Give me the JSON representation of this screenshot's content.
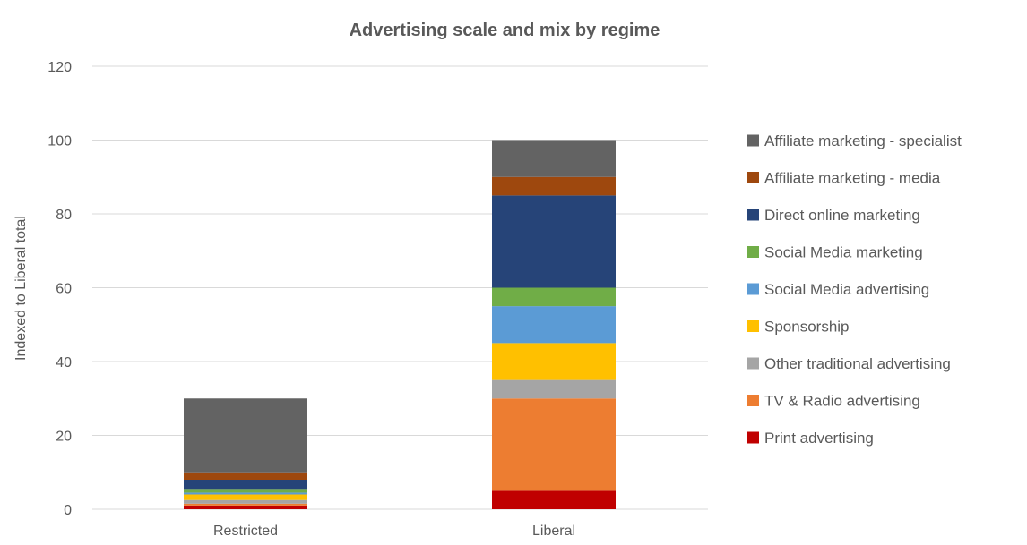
{
  "chart_data": {
    "type": "bar",
    "stacked": true,
    "title": "Advertising scale and mix by regime",
    "xlabel": "",
    "ylabel": "Indexed to Liberal total",
    "ylim": [
      0,
      120
    ],
    "yticks": [
      0,
      20,
      40,
      60,
      80,
      100,
      120
    ],
    "grid": true,
    "legend_position": "right",
    "categories": [
      "Restricted",
      "Liberal"
    ],
    "series": [
      {
        "name": "Print advertising",
        "color": "#c00000",
        "values": [
          1,
          5
        ]
      },
      {
        "name": "TV & Radio advertising",
        "color": "#ed7d31",
        "values": [
          0.5,
          25
        ]
      },
      {
        "name": "Other traditional advertising",
        "color": "#a5a5a5",
        "values": [
          1,
          5
        ]
      },
      {
        "name": "Sponsorship",
        "color": "#ffc000",
        "values": [
          1.5,
          10
        ]
      },
      {
        "name": "Social Media advertising",
        "color": "#5b9bd5",
        "values": [
          0.5,
          10
        ]
      },
      {
        "name": "Social Media marketing",
        "color": "#70ad47",
        "values": [
          1,
          5
        ]
      },
      {
        "name": "Direct online marketing",
        "color": "#264478",
        "values": [
          2.5,
          25
        ]
      },
      {
        "name": "Affiliate marketing - media",
        "color": "#9e480e",
        "values": [
          2,
          5
        ]
      },
      {
        "name": "Affiliate marketing - specialist",
        "color": "#636363",
        "values": [
          20,
          10
        ]
      }
    ]
  }
}
